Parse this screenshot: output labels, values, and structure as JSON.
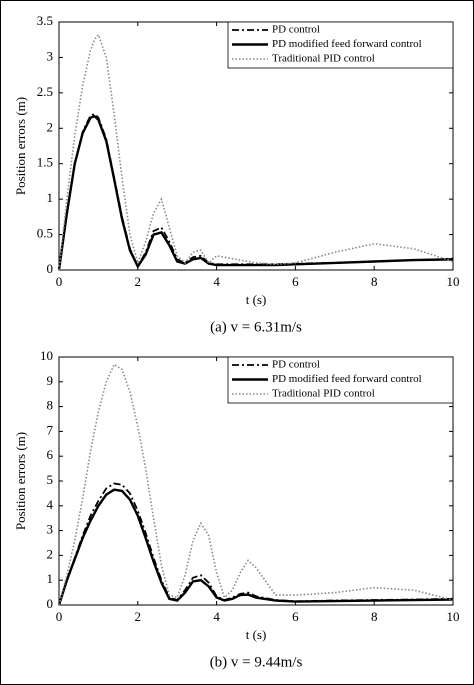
{
  "chart_data": [
    {
      "type": "line",
      "xlabel": "t (s)",
      "ylabel": "Position errors (m)",
      "caption": "(a) v = 6.31m/s",
      "xlim": [
        0,
        10
      ],
      "xticks": [
        0,
        2,
        4,
        6,
        8,
        10
      ],
      "ylim": [
        0,
        3.5
      ],
      "yticks": [
        0,
        0.5,
        1,
        1.5,
        2,
        2.5,
        3,
        3.5
      ],
      "grid": false,
      "legend": "upper right",
      "x": [
        0,
        0.2,
        0.4,
        0.6,
        0.8,
        0.9,
        1.0,
        1.2,
        1.4,
        1.6,
        1.8,
        2.0,
        2.2,
        2.4,
        2.6,
        2.8,
        3.0,
        3.2,
        3.4,
        3.6,
        3.8,
        4.0,
        4.5,
        5,
        5.5,
        6,
        7,
        8,
        9,
        10
      ],
      "series": [
        {
          "name": "PD control",
          "color": "#000000",
          "line_style": "dashdot",
          "values": [
            0,
            0.8,
            1.5,
            1.95,
            2.18,
            2.2,
            2.15,
            1.85,
            1.3,
            0.75,
            0.3,
            0.05,
            0.25,
            0.55,
            0.6,
            0.4,
            0.15,
            0.1,
            0.18,
            0.2,
            0.1,
            0.08,
            0.08,
            0.08,
            0.08,
            0.09,
            0.1,
            0.12,
            0.14,
            0.16
          ]
        },
        {
          "name": "PD modified feed forward control",
          "color": "#000000",
          "line_style": "solid",
          "values": [
            0,
            0.8,
            1.5,
            1.93,
            2.15,
            2.17,
            2.12,
            1.82,
            1.28,
            0.72,
            0.28,
            0.05,
            0.22,
            0.5,
            0.53,
            0.35,
            0.12,
            0.09,
            0.15,
            0.17,
            0.09,
            0.07,
            0.07,
            0.07,
            0.07,
            0.08,
            0.1,
            0.12,
            0.14,
            0.15
          ]
        },
        {
          "name": "Traditional PID control",
          "color": "#888888",
          "line_style": "dotted",
          "values": [
            0,
            1.0,
            1.9,
            2.6,
            3.1,
            3.25,
            3.32,
            3.0,
            2.2,
            1.3,
            0.5,
            0.1,
            0.4,
            0.8,
            1.0,
            0.6,
            0.2,
            0.1,
            0.25,
            0.28,
            0.1,
            0.2,
            0.15,
            0.1,
            0.08,
            0.1,
            0.25,
            0.37,
            0.3,
            0.12
          ]
        }
      ]
    },
    {
      "type": "line",
      "xlabel": "t (s)",
      "ylabel": "Position errors (m)",
      "caption": "(b) v = 9.44m/s",
      "xlim": [
        0,
        10
      ],
      "xticks": [
        0,
        2,
        4,
        6,
        8,
        10
      ],
      "ylim": [
        0,
        10
      ],
      "yticks": [
        0,
        1,
        2,
        3,
        4,
        5,
        6,
        7,
        8,
        9,
        10
      ],
      "grid": false,
      "legend": "upper right",
      "x": [
        0,
        0.2,
        0.4,
        0.6,
        0.8,
        1.0,
        1.2,
        1.4,
        1.6,
        1.8,
        2.0,
        2.2,
        2.4,
        2.6,
        2.8,
        3.0,
        3.2,
        3.4,
        3.6,
        3.8,
        4.0,
        4.2,
        4.4,
        4.6,
        4.8,
        5.0,
        5.5,
        6,
        7,
        8,
        9,
        10
      ],
      "series": [
        {
          "name": "PD control",
          "color": "#000000",
          "line_style": "dashdot",
          "values": [
            0,
            1,
            1.9,
            2.8,
            3.6,
            4.2,
            4.7,
            4.9,
            4.85,
            4.5,
            3.8,
            2.9,
            1.9,
            1.0,
            0.3,
            0.2,
            0.6,
            1.1,
            1.2,
            0.9,
            0.35,
            0.2,
            0.3,
            0.45,
            0.5,
            0.35,
            0.2,
            0.15,
            0.18,
            0.2,
            0.22,
            0.25
          ]
        },
        {
          "name": "PD modified feed forward control",
          "color": "#000000",
          "line_style": "solid",
          "values": [
            0,
            1,
            1.85,
            2.7,
            3.4,
            4.0,
            4.45,
            4.65,
            4.6,
            4.25,
            3.6,
            2.7,
            1.75,
            0.9,
            0.25,
            0.18,
            0.5,
            0.95,
            1.0,
            0.75,
            0.3,
            0.18,
            0.25,
            0.4,
            0.42,
            0.3,
            0.18,
            0.14,
            0.16,
            0.18,
            0.2,
            0.22
          ]
        },
        {
          "name": "Traditional PID control",
          "color": "#888888",
          "line_style": "dotted",
          "values": [
            0,
            1.2,
            2.6,
            4.3,
            6.2,
            7.8,
            9.0,
            9.7,
            9.5,
            8.6,
            7.2,
            5.5,
            3.5,
            1.6,
            0.4,
            0.3,
            1.2,
            2.6,
            3.3,
            2.8,
            1.3,
            0.3,
            0.6,
            1.3,
            1.8,
            1.5,
            0.4,
            0.4,
            0.5,
            0.7,
            0.6,
            0.2
          ]
        }
      ]
    }
  ]
}
